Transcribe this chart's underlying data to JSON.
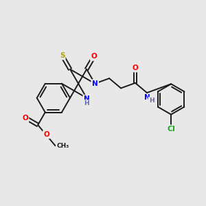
{
  "background_color": "#e8e8e8",
  "figsize": [
    3.0,
    3.0
  ],
  "dpi": 100,
  "bond_color": "#1a1a1a",
  "bond_width": 1.4,
  "atom_colors": {
    "O": "#ff0000",
    "N": "#0000ff",
    "S": "#b8a000",
    "Cl": "#22aa22",
    "C": "#1a1a1a",
    "H": "#6666aa"
  },
  "font_size_atom": 7.5,
  "font_size_small": 6.5
}
